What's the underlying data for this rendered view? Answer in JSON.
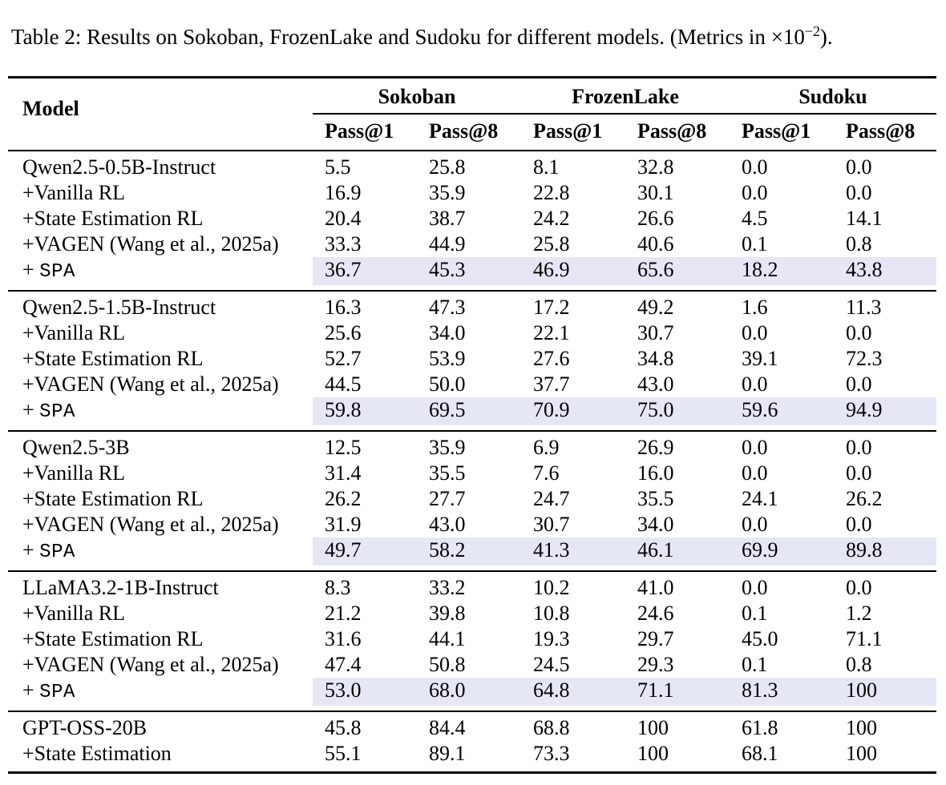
{
  "colors": {
    "highlight": "#e5e7f5",
    "rule": "#000000",
    "text": "#000000",
    "background": "#ffffff"
  },
  "caption": {
    "main": "Table 2: Results on Sokoban, FrozenLake and Sudoku for different models. (Metrics in ",
    "times_base": "×10",
    "exponent": "−2",
    "suffix": ")."
  },
  "table": {
    "model_header": "Model",
    "group_headers": [
      "Sokoban",
      "FrozenLake",
      "Sudoku"
    ],
    "sub_headers": [
      "Pass@1",
      "Pass@8",
      "Pass@1",
      "Pass@8",
      "Pass@1",
      "Pass@8"
    ],
    "row_groups": [
      {
        "rows": [
          {
            "label": "Qwen2.5-0.5B-Instruct",
            "values": [
              "5.5",
              "25.8",
              "8.1",
              "32.8",
              "0.0",
              "0.0"
            ]
          },
          {
            "label": "+Vanilla RL",
            "values": [
              "16.9",
              "35.9",
              "22.8",
              "30.1",
              "0.0",
              "0.0"
            ]
          },
          {
            "label": "+State Estimation RL",
            "values": [
              "20.4",
              "38.7",
              "24.2",
              "26.6",
              "4.5",
              "14.1"
            ]
          },
          {
            "label": "+VAGEN (Wang et al., 2025a)",
            "values": [
              "33.3",
              "44.9",
              "25.8",
              "40.6",
              "0.1",
              "0.8"
            ]
          },
          {
            "label_prefix": "+ ",
            "label_mono": "SPA",
            "highlight": true,
            "values": [
              "36.7",
              "45.3",
              "46.9",
              "65.6",
              "18.2",
              "43.8"
            ]
          }
        ]
      },
      {
        "rows": [
          {
            "label": "Qwen2.5-1.5B-Instruct",
            "values": [
              "16.3",
              "47.3",
              "17.2",
              "49.2",
              "1.6",
              "11.3"
            ]
          },
          {
            "label": "+Vanilla RL",
            "values": [
              "25.6",
              "34.0",
              "22.1",
              "30.7",
              "0.0",
              "0.0"
            ]
          },
          {
            "label": "+State Estimation RL",
            "values": [
              "52.7",
              "53.9",
              "27.6",
              "34.8",
              "39.1",
              "72.3"
            ]
          },
          {
            "label": "+VAGEN (Wang et al., 2025a)",
            "values": [
              "44.5",
              "50.0",
              "37.7",
              "43.0",
              "0.0",
              "0.0"
            ]
          },
          {
            "label_prefix": "+ ",
            "label_mono": "SPA",
            "highlight": true,
            "values": [
              "59.8",
              "69.5",
              "70.9",
              "75.0",
              "59.6",
              "94.9"
            ]
          }
        ]
      },
      {
        "rows": [
          {
            "label": "Qwen2.5-3B",
            "values": [
              "12.5",
              "35.9",
              "6.9",
              "26.9",
              "0.0",
              "0.0"
            ]
          },
          {
            "label": "+Vanilla RL",
            "values": [
              "31.4",
              "35.5",
              "7.6",
              "16.0",
              "0.0",
              "0.0"
            ]
          },
          {
            "label": "+State Estimation RL",
            "values": [
              "26.2",
              "27.7",
              "24.7",
              "35.5",
              "24.1",
              "26.2"
            ]
          },
          {
            "label": "+VAGEN (Wang et al., 2025a)",
            "values": [
              "31.9",
              "43.0",
              "30.7",
              "34.0",
              "0.0",
              "0.0"
            ]
          },
          {
            "label_prefix": "+ ",
            "label_mono": "SPA",
            "highlight": true,
            "values": [
              "49.7",
              "58.2",
              "41.3",
              "46.1",
              "69.9",
              "89.8"
            ]
          }
        ]
      },
      {
        "rows": [
          {
            "label": "LLaMA3.2-1B-Instruct",
            "values": [
              "8.3",
              "33.2",
              "10.2",
              "41.0",
              "0.0",
              "0.0"
            ]
          },
          {
            "label": "+Vanilla RL",
            "values": [
              "21.2",
              "39.8",
              "10.8",
              "24.6",
              "0.1",
              "1.2"
            ]
          },
          {
            "label": "+State Estimation RL",
            "values": [
              "31.6",
              "44.1",
              "19.3",
              "29.7",
              "45.0",
              "71.1"
            ]
          },
          {
            "label": "+VAGEN (Wang et al., 2025a)",
            "values": [
              "47.4",
              "50.8",
              "24.5",
              "29.3",
              "0.1",
              "0.8"
            ]
          },
          {
            "label_prefix": "+ ",
            "label_mono": "SPA",
            "highlight": true,
            "values": [
              "53.0",
              "68.0",
              "64.8",
              "71.1",
              "81.3",
              "100"
            ]
          }
        ]
      },
      {
        "rows": [
          {
            "label": "GPT-OSS-20B",
            "values": [
              "45.8",
              "84.4",
              "68.8",
              "100",
              "61.8",
              "100"
            ]
          },
          {
            "label": "+State Estimation",
            "values": [
              "55.1",
              "89.1",
              "73.3",
              "100",
              "68.1",
              "100"
            ]
          }
        ]
      }
    ]
  }
}
